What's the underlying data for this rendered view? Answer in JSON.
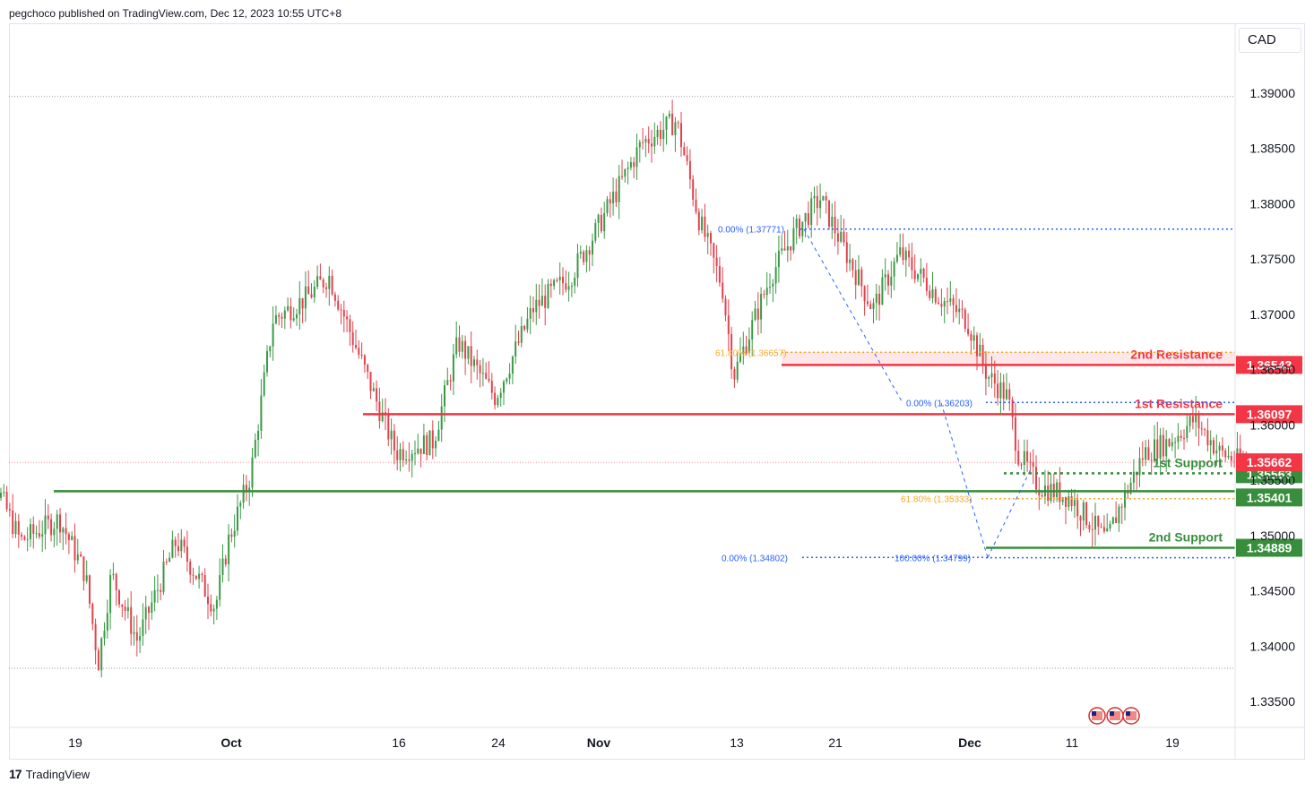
{
  "header": {
    "publisher_line": "pegchoco published on TradingView.com, Dec 12, 2023 10:55 UTC+8"
  },
  "currency": "CAD",
  "footer": {
    "brand": "TradingView",
    "logo_icon": "tradingview-logo-icon"
  },
  "colors": {
    "up": "#26a69a",
    "down": "#ef5350",
    "candle_up": "#3a9a46",
    "candle_down": "#e2424c",
    "resistance": "#f23645",
    "support": "#388e3c",
    "fib_blue": "#2962ff",
    "fib_orange": "#f9a825",
    "current_price": "#f23645"
  },
  "chart_data": {
    "type": "candlestick",
    "symbol_currency": "CAD",
    "title": "",
    "x_tick_labels": [
      "19",
      "Oct",
      "16",
      "24",
      "Nov",
      "13",
      "21",
      "Dec",
      "11",
      "19"
    ],
    "x_tick_dates": [
      "2023-09-19",
      "2023-10-01",
      "2023-10-16",
      "2023-10-24",
      "2023-11-01",
      "2023-11-13",
      "2023-11-21",
      "2023-12-01",
      "2023-12-11",
      "2023-12-19"
    ],
    "y_tick_labels": [
      "1.39000",
      "1.38500",
      "1.38000",
      "1.37500",
      "1.37000",
      "1.36500",
      "1.36000",
      "1.35500",
      "1.35000",
      "1.34500",
      "1.34000",
      "1.33500"
    ],
    "y_ticks": [
      1.39,
      1.385,
      1.38,
      1.375,
      1.37,
      1.365,
      1.36,
      1.355,
      1.35,
      1.345,
      1.34,
      1.335
    ],
    "ylim": [
      1.3325,
      1.3963
    ],
    "grid": false,
    "anchor_points": [
      {
        "date": "2023-09-11",
        "price": 1.3555
      },
      {
        "date": "2023-09-12",
        "price": 1.3575
      },
      {
        "date": "2023-09-15",
        "price": 1.3495
      },
      {
        "date": "2023-09-18",
        "price": 1.3515
      },
      {
        "date": "2023-09-20",
        "price": 1.3465
      },
      {
        "date": "2023-09-21",
        "price": 1.3385
      },
      {
        "date": "2023-09-22",
        "price": 1.3465
      },
      {
        "date": "2023-09-24",
        "price": 1.3405
      },
      {
        "date": "2023-09-27",
        "price": 1.3495
      },
      {
        "date": "2023-10-01",
        "price": 1.3495
      },
      {
        "date": "2023-09-30",
        "price": 1.3435
      },
      {
        "date": "2023-10-03",
        "price": 1.3555
      },
      {
        "date": "2023-10-05",
        "price": 1.3695
      },
      {
        "date": "2023-10-08",
        "price": 1.3715
      },
      {
        "date": "2023-10-10",
        "price": 1.3735
      },
      {
        "date": "2023-10-13",
        "price": 1.3655
      },
      {
        "date": "2023-10-16",
        "price": 1.3575
      },
      {
        "date": "2023-10-19",
        "price": 1.3585
      },
      {
        "date": "2023-10-21",
        "price": 1.3675
      },
      {
        "date": "2023-10-24",
        "price": 1.3625
      },
      {
        "date": "2023-10-27",
        "price": 1.3705
      },
      {
        "date": "2023-10-30",
        "price": 1.3735
      },
      {
        "date": "2023-11-01",
        "price": 1.3775
      },
      {
        "date": "2023-11-05",
        "price": 1.3855
      },
      {
        "date": "2023-11-08",
        "price": 1.3875
      },
      {
        "date": "2023-11-10",
        "price": 1.3785
      },
      {
        "date": "2023-11-12",
        "price": 1.3725
      },
      {
        "date": "2023-11-13",
        "price": 1.3645
      },
      {
        "date": "2023-11-16",
        "price": 1.3735
      },
      {
        "date": "2023-11-18",
        "price": 1.3775
      },
      {
        "date": "2023-11-20",
        "price": 1.3805
      },
      {
        "date": "2023-11-24",
        "price": 1.3705
      },
      {
        "date": "2023-11-26",
        "price": 1.3755
      },
      {
        "date": "2023-11-29",
        "price": 1.3715
      },
      {
        "date": "2023-12-01",
        "price": 1.3695
      },
      {
        "date": "2023-12-03",
        "price": 1.3645
      },
      {
        "date": "2023-12-05",
        "price": 1.3625
      },
      {
        "date": "2023-12-06",
        "price": 1.3575
      },
      {
        "date": "2023-12-08",
        "price": 1.3545
      },
      {
        "date": "2023-12-11",
        "price": 1.3535
      },
      {
        "date": "2023-12-14",
        "price": 1.3495
      },
      {
        "date": "2023-12-15",
        "price": 1.3525
      },
      {
        "date": "2023-12-17",
        "price": 1.3575
      },
      {
        "date": "2023-12-19",
        "price": 1.3585
      },
      {
        "date": "2023-12-21",
        "price": 1.3605
      },
      {
        "date": "2023-12-23",
        "price": 1.3575
      },
      {
        "date": "2023-12-25",
        "price": 1.3565
      }
    ],
    "levels": [
      {
        "name": "2nd Resistance",
        "price": 1.36543,
        "label": "1.36543",
        "kind": "resistance",
        "style": "solid"
      },
      {
        "name": "1st Resistance",
        "price": 1.36097,
        "label": "1.36097",
        "kind": "resistance",
        "style": "solid"
      },
      {
        "name": "1st Support",
        "price": 1.35563,
        "label": "1.35563",
        "kind": "support",
        "style": "dotted"
      },
      {
        "name": "",
        "price": 1.35401,
        "label": "1.35401",
        "kind": "support",
        "style": "solid"
      },
      {
        "name": "2nd Support",
        "price": 1.34889,
        "label": "1.34889",
        "kind": "support",
        "style": "solid"
      }
    ],
    "current_price": {
      "price": 1.35662,
      "label": "1.35662"
    },
    "fib_labels": [
      {
        "text": "0.00% (1.37771)",
        "price": 1.37771,
        "color": "blue"
      },
      {
        "text": "61.80% (1.36657)",
        "price": 1.36657,
        "color": "orange"
      },
      {
        "text": "0.00% (1.36203)",
        "price": 1.36203,
        "color": "blue"
      },
      {
        "text": "61.80% (1.35333)",
        "price": 1.35333,
        "color": "orange"
      },
      {
        "text": "0.00% (1.34802)",
        "price": 1.34802,
        "color": "blue"
      },
      {
        "text": "100.00% (1.34799)",
        "price": 1.34799,
        "color": "blue"
      }
    ],
    "range_lines": {
      "high": 1.3897,
      "low": 1.338
    }
  }
}
